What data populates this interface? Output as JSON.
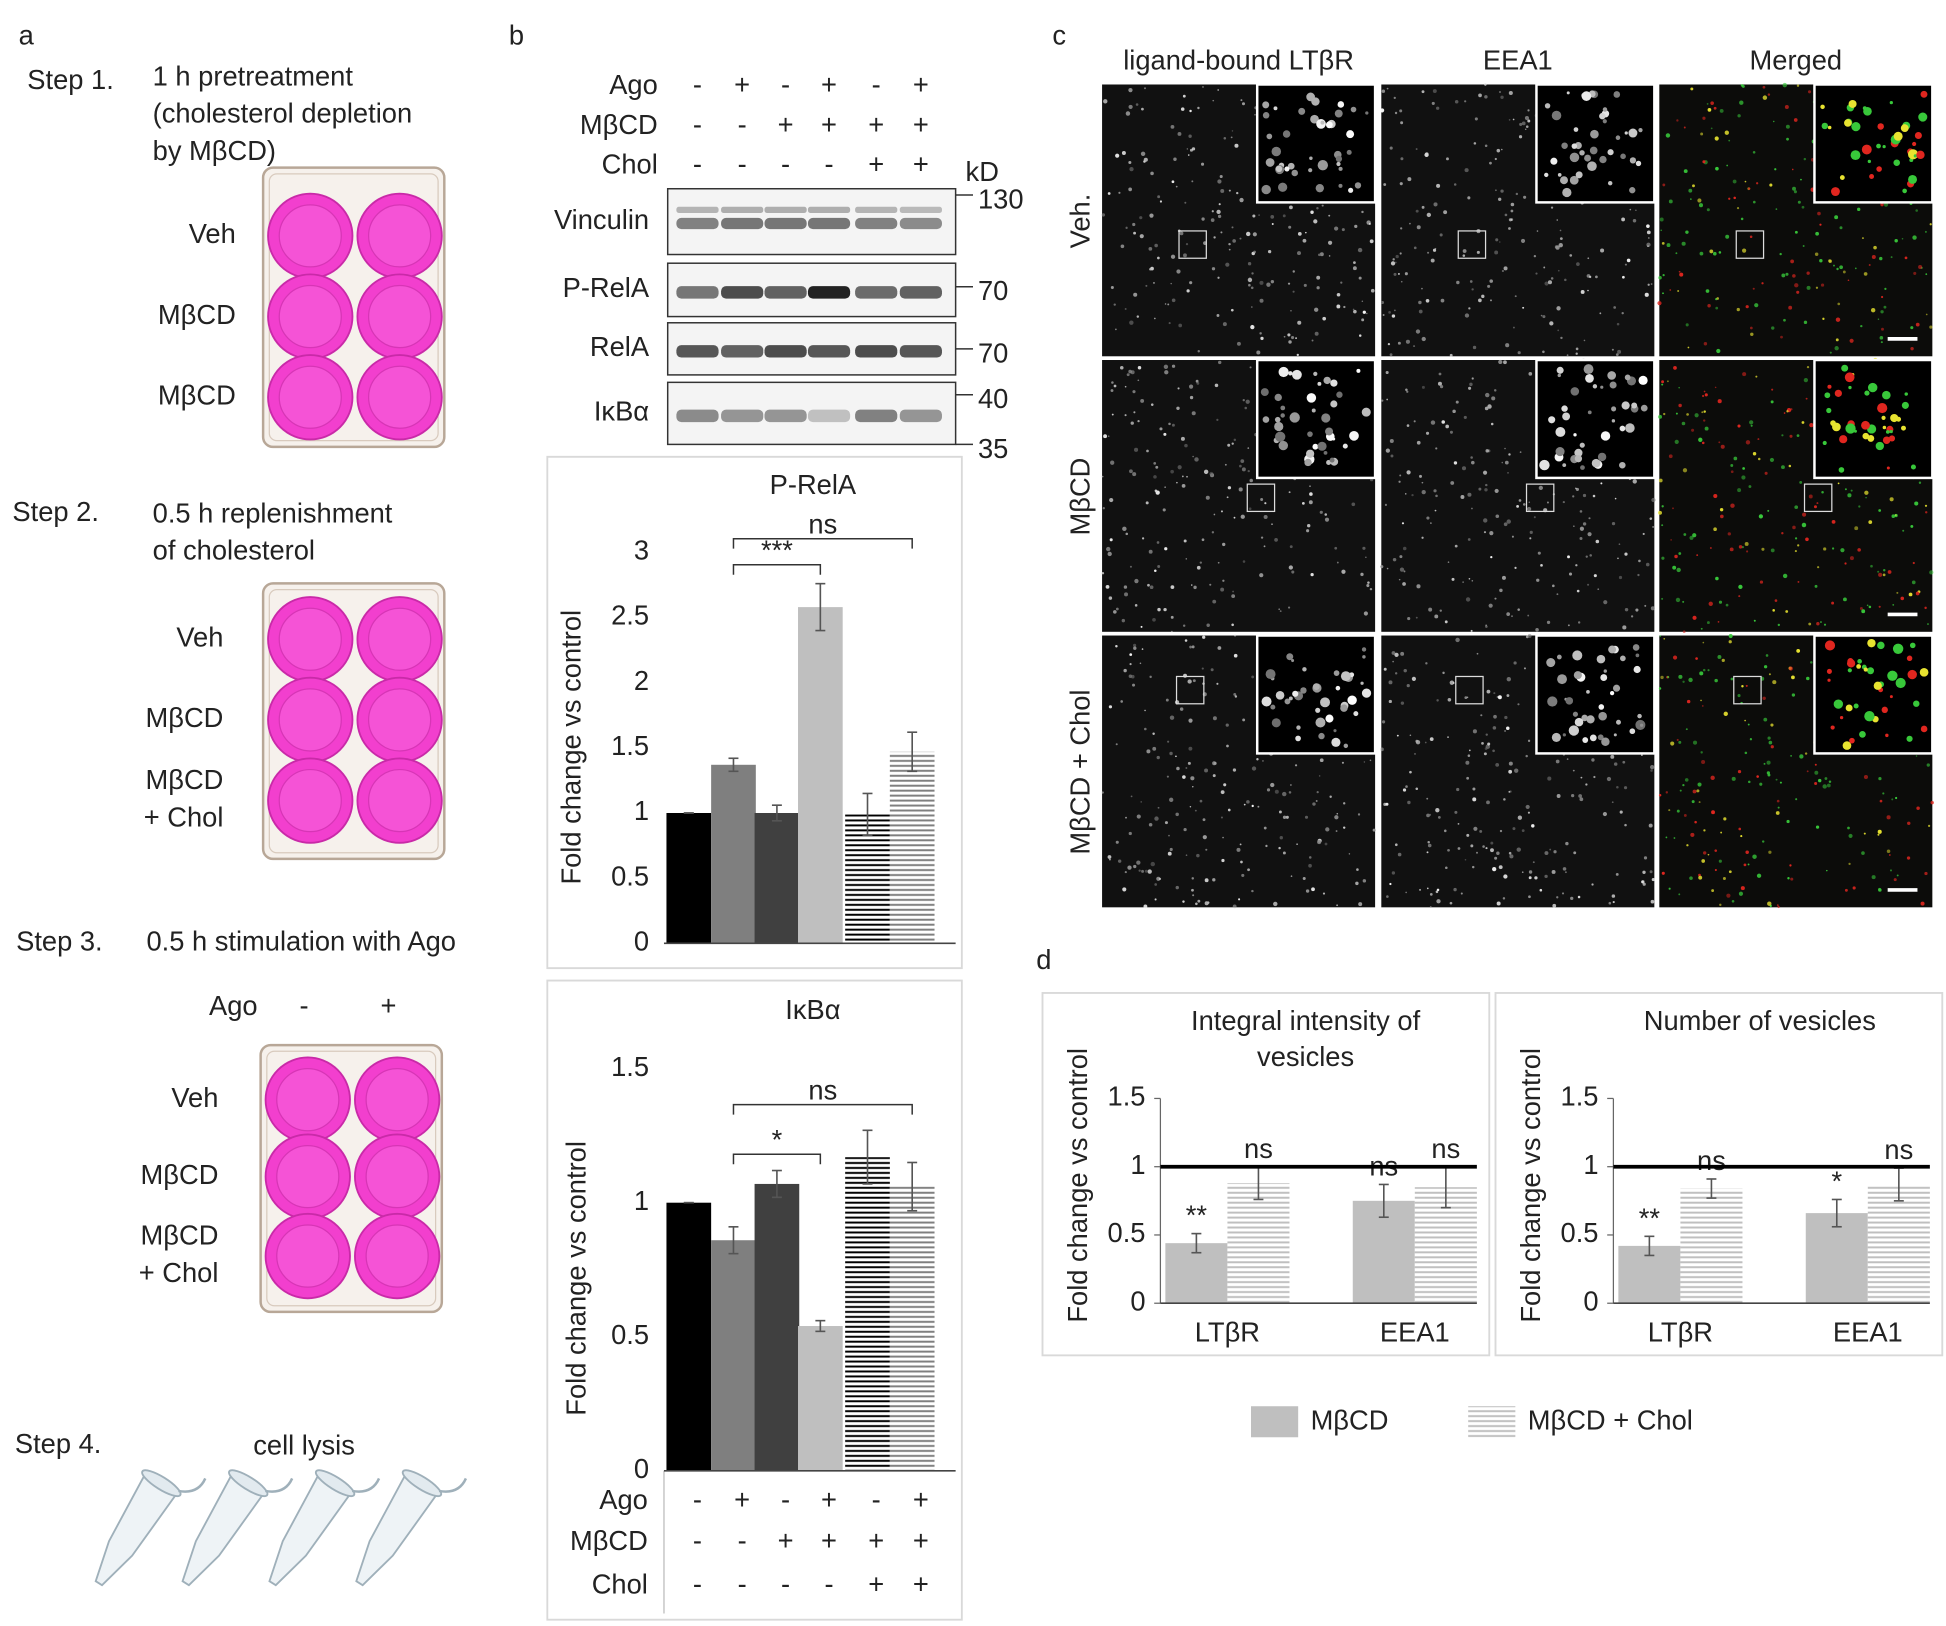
{
  "figure": {
    "panel_labels": [
      "a",
      "b",
      "c",
      "d"
    ],
    "a": {
      "steps": [
        {
          "label": "Step 1.",
          "text": [
            "1 h pretreatment",
            "(cholesterol depletion",
            "by MβCD)"
          ],
          "rows": [
            [
              "Veh"
            ],
            [
              "MβCD"
            ],
            [
              "MβCD"
            ]
          ]
        },
        {
          "label": "Step 2.",
          "text": [
            "0.5 h replenishment",
            "of cholesterol"
          ],
          "rows": [
            [
              "Veh"
            ],
            [
              "MβCD"
            ],
            [
              "MβCD",
              "+ Chol"
            ]
          ]
        },
        {
          "label": "Step 3.",
          "text": [
            "0.5 h stimulation with Ago"
          ],
          "column_header": [
            "Ago",
            "-",
            "+"
          ],
          "rows": [
            [
              "Veh"
            ],
            [
              "MβCD"
            ],
            [
              "MβCD",
              "+ Chol"
            ]
          ]
        },
        {
          "label": "Step 4.",
          "text": [
            "cell lysis"
          ]
        }
      ]
    },
    "b": {
      "conditions": [
        {
          "name": "Ago",
          "values": [
            "-",
            "+",
            "-",
            "+",
            "-",
            "+"
          ]
        },
        {
          "name": "MβCD",
          "values": [
            "-",
            "-",
            "+",
            "+",
            "+",
            "+"
          ]
        },
        {
          "name": "Chol",
          "values": [
            "-",
            "-",
            "-",
            "-",
            "+",
            "+"
          ]
        }
      ],
      "blot": {
        "unit": "kD",
        "bands": [
          "Vinculin",
          "P-RelA",
          "RelA",
          "IκBα"
        ],
        "markers": [
          130,
          70,
          70,
          40,
          35
        ]
      }
    },
    "c": {
      "columns": [
        "ligand-bound LTβR",
        "EEA1",
        "Merged"
      ],
      "column_colors": [
        "#22b14c",
        "#ed1c24",
        "#000000"
      ],
      "rows": [
        "Veh.",
        "MβCD",
        "MβCD + Chol"
      ]
    }
  },
  "chart_data": [
    {
      "type": "bar",
      "title": "P-RelA",
      "y_label": "Fold change vs control",
      "categories": [
        null,
        null,
        null,
        null,
        null,
        null
      ],
      "values": [
        1,
        1.37,
        1,
        2.58,
        0.99,
        1.47
      ],
      "errors": [
        0,
        0.05,
        0.06,
        0.18,
        0.16,
        0.15
      ],
      "colors": [
        "#000000",
        "#7f7f7f",
        "#404040",
        "#bfbfbf",
        "#000000",
        "#7f7f7f"
      ],
      "hatched": [
        false,
        false,
        false,
        false,
        true,
        true
      ],
      "ylim": [
        0,
        3
      ],
      "yticks": [
        0,
        0.5,
        1,
        1.5,
        2,
        2.5,
        3
      ],
      "annotations": [
        {
          "text": "***",
          "between": [
            1,
            3
          ]
        },
        {
          "text": "ns",
          "between": [
            1,
            5
          ]
        }
      ]
    },
    {
      "type": "bar",
      "title": "IκBα",
      "y_label": "Fold change vs control",
      "categories": [
        null,
        null,
        null,
        null,
        null,
        null
      ],
      "values": [
        1,
        0.86,
        1.07,
        0.54,
        1.17,
        1.06
      ],
      "errors": [
        0,
        0.05,
        0.05,
        0.02,
        0.1,
        0.09
      ],
      "colors": [
        "#000000",
        "#7f7f7f",
        "#404040",
        "#bfbfbf",
        "#000000",
        "#7f7f7f"
      ],
      "hatched": [
        false,
        false,
        false,
        false,
        true,
        true
      ],
      "ylim": [
        0,
        1.5
      ],
      "yticks": [
        0,
        0.5,
        1,
        1.5
      ],
      "annotations": [
        {
          "text": "*",
          "between": [
            1,
            3
          ]
        },
        {
          "text": "ns",
          "between": [
            1,
            5
          ]
        }
      ]
    },
    {
      "type": "bar",
      "title": [
        "Integral intensity of",
        "vesicles"
      ],
      "y_label": "Fold change vs control",
      "categories": [
        "LTβR",
        "EEA1"
      ],
      "series": [
        {
          "name": "MβCD",
          "color": "#bfbfbf",
          "hatched": false,
          "values": [
            0.44,
            0.75
          ],
          "errors": [
            0.07,
            0.12
          ],
          "significance": [
            "**",
            "ns"
          ]
        },
        {
          "name": "MβCD + Chol",
          "color": "#bfbfbf",
          "hatched": true,
          "values": [
            0.88,
            0.85
          ],
          "errors": [
            0.12,
            0.15
          ],
          "significance": [
            "ns",
            "ns"
          ]
        }
      ],
      "reference_line": 1,
      "ylim": [
        0,
        1.5
      ],
      "yticks": [
        0,
        0.5,
        1,
        1.5
      ],
      "legend": "bottom"
    },
    {
      "type": "bar",
      "title": [
        "Number of vesicles"
      ],
      "y_label": "Fold change vs control",
      "categories": [
        "LTβR",
        "EEA1"
      ],
      "series": [
        {
          "color": "#bfbfbf",
          "hatched": false,
          "values": [
            0.42,
            0.66
          ],
          "errors": [
            0.07,
            0.1
          ],
          "significance": [
            "**",
            "*"
          ]
        },
        {
          "color": "#bfbfbf",
          "hatched": true,
          "values": [
            0.84,
            0.87
          ],
          "errors": [
            0.07,
            0.12
          ],
          "significance": [
            "ns",
            "ns"
          ]
        }
      ],
      "reference_line": 1,
      "ylim": [
        0,
        1.5
      ],
      "yticks": [
        0,
        0.5,
        1,
        1.5
      ]
    }
  ]
}
